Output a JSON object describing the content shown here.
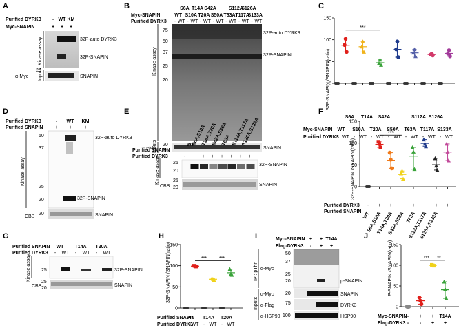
{
  "panels": {
    "A": {
      "label": "A",
      "rows": [
        {
          "label": "Purified DYRK3",
          "values": [
            "-",
            "WT",
            "KM"
          ]
        },
        {
          "label": "Myc-SNAPIN",
          "values": [
            "+",
            "+",
            "+"
          ]
        }
      ],
      "side_label_top": "Kinase assay",
      "side_label_bottom": "Inputs",
      "band_labels": [
        "32P-auto DYRK3",
        "32P-SNAPIN",
        "SNAPIN"
      ],
      "blot_label": "α-Myc",
      "mw": [
        "25"
      ]
    },
    "B": {
      "label": "B",
      "mutants_top": [
        "S6A",
        "T14A",
        "S42A",
        "S112A",
        "S126A"
      ],
      "mutants_bottom": [
        "WT",
        "S10A",
        "T20A",
        "S50A",
        "T63A",
        "T117A",
        "S133A"
      ],
      "row_labels": [
        "Myc-SNAPIN",
        "Purified DYRK3"
      ],
      "dyrk3_values": [
        "-",
        "WT",
        "-",
        "WT",
        "-",
        "WT",
        "-",
        "WT",
        "-",
        "WT",
        "-",
        "WT",
        "-",
        "WT"
      ],
      "side_label_top": "Kinase assay",
      "side_label_bottom": "Inputs",
      "band_labels": [
        "32P-auto DYRK3",
        "32P-SNAPIN",
        "SNAPIN"
      ],
      "blot_label": "α-Myc",
      "mw_top": [
        "75",
        "50",
        "37",
        "25",
        "20"
      ],
      "mw_bottom": [
        "20",
        "15"
      ]
    },
    "C": {
      "label": "C",
      "chart_data": {
        "type": "scatter",
        "ylabel": "32P-SNAPIN /SNAPIN(ratio)",
        "ylim": [
          0,
          150
        ],
        "yticks": [
          0,
          50,
          100,
          150
        ],
        "groups": [
          "WT",
          "S6A S10A",
          "T14A T20A",
          "S42A S50A",
          "T63A",
          "S112A T117A",
          "S126A S133A"
        ],
        "points_wt": [
          [
            88,
            102,
            72
          ],
          [
            84,
            96,
            72
          ],
          [
            46,
            54,
            42
          ],
          [
            78,
            96,
            60
          ],
          [
            70,
            78,
            62
          ],
          [
            66,
            68,
            64
          ],
          [
            68,
            76,
            62
          ]
        ],
        "colors": [
          "#e0201b",
          "#f0b21a",
          "#3aa33a",
          "#1f3b8c",
          "#5560a8",
          "#d23a6a",
          "#a23a9a"
        ],
        "significance": [
          "***"
        ],
        "xlabels_top": [
          "S6A",
          "T14A",
          "S42A",
          "S112A",
          "S126A"
        ],
        "xlabels_bottom": [
          "WT",
          "S10A",
          "T20A",
          "S50A",
          "T63A",
          "T117A",
          "S133A"
        ],
        "row_labels": [
          "Myc-SNAPIN",
          "Purified DYRK3"
        ],
        "dyrk3_values": [
          "-",
          "WT",
          "-",
          "WT",
          "-",
          "WT",
          "-",
          "WT",
          "-",
          "WT",
          "-",
          "WT",
          "-",
          "WT"
        ]
      }
    },
    "D": {
      "label": "D",
      "rows": [
        {
          "label": "Purified DYRK3",
          "values": [
            "-",
            "WT",
            "KM"
          ]
        },
        {
          "label": "Purified SNAPIN",
          "values": [
            "+",
            "+",
            "+"
          ]
        }
      ],
      "side_label": "Kinase assay",
      "bottom_label": "CBB",
      "band_labels": [
        "32P-auto DYRK3",
        "32P-SNAPIN",
        "SNAPIN"
      ],
      "mw": [
        "50",
        "37",
        "25",
        "20",
        "20"
      ]
    },
    "E": {
      "label": "E",
      "lane_labels": [
        "WT",
        "S6A,S10A",
        "T14A,T20A",
        "S42A,S50A",
        "T63A",
        "S112A,T117A",
        "S126A,S133A"
      ],
      "row_labels": [
        "Purified SNAPIN",
        "Purified DYRK3"
      ],
      "dyrk3_values": [
        "-",
        "+",
        "+",
        "+",
        "+",
        "+",
        "+",
        "+"
      ],
      "side_label": "Kinase assay",
      "bottom_label": "CBB",
      "band_labels": [
        "32P-SNAPIN",
        "SNAPIN"
      ],
      "mw_top": [
        "25",
        "20"
      ],
      "mw_bottom": [
        "25",
        "20"
      ]
    },
    "F": {
      "label": "F",
      "chart_data": {
        "type": "scatter",
        "ylabel": "32P-SNAPIN /SNAPIN(ratio)",
        "ylim": [
          0,
          150
        ],
        "yticks": [
          0,
          50,
          100,
          150
        ],
        "groups": [
          "WT",
          "S6A,S10A",
          "T14A,T20A",
          "S42A,S50A",
          "T63A",
          "S112A,T117A",
          "S126A,S133A"
        ],
        "points": [
          [
            103,
            98,
            90
          ],
          [
            78,
            62,
            42
          ],
          [
            30,
            36,
            18
          ],
          [
            90,
            80,
            40
          ],
          [
            108,
            98,
            92
          ],
          [
            65,
            48,
            38
          ],
          [
            98,
            80,
            60
          ]
        ],
        "colors": [
          "#e0201b",
          "#f07a1a",
          "#f0d21a",
          "#3aa33a",
          "#1f3b8c",
          "#222222",
          "#c24a9a"
        ],
        "significance": [
          "***"
        ],
        "row_labels": [
          "Purified DYRK3",
          "Purified SNAPIN"
        ],
        "dyrk3_values": [
          "-",
          "+",
          "+",
          "+",
          "+",
          "+",
          "+",
          "+"
        ],
        "xlabels": [
          "WT",
          "S6A,S10A",
          "T14A,T20A",
          "S42A,S50A",
          "T63A",
          "S112A,T117A",
          "S126A,S133A"
        ]
      }
    },
    "G": {
      "label": "G",
      "lane_labels": [
        "WT",
        "T14A",
        "T20A"
      ],
      "row_labels": [
        "Purified SNAPIN",
        "Purified DYRK3"
      ],
      "dyrk3_values": [
        "-",
        "WT",
        "-",
        "WT",
        "-",
        "WT"
      ],
      "side_label": "Kinase assay",
      "bottom_label": "CBB",
      "band_labels": [
        "32P-SNAPIN",
        "SNAPIN"
      ],
      "mw_top": [
        "25"
      ],
      "mw_bottom": [
        "25",
        "20"
      ]
    },
    "H": {
      "label": "H",
      "chart_data": {
        "type": "scatter",
        "ylabel": "32P-SNAPIN /SNAPIN(ratio)",
        "ylim": [
          0,
          150
        ],
        "yticks": [
          0,
          50,
          100,
          150
        ],
        "groups": [
          "WT",
          "T14A",
          "T20A"
        ],
        "points_wt": [
          [
            100,
            99,
            98
          ],
          [
            70,
            68,
            66
          ],
          [
            92,
            80,
            78
          ]
        ],
        "colors": [
          "#e0201b",
          "#f0d21a",
          "#3aa33a"
        ],
        "significance": [
          "***",
          "***"
        ],
        "row_labels": [
          "Purified SNAPIN",
          "Purified DYRK3"
        ],
        "xlabels": [
          "WT",
          "T14A",
          "T20A"
        ],
        "dyrk3_values": [
          "-",
          "WT",
          "-",
          "WT",
          "-",
          "WT"
        ]
      }
    },
    "I": {
      "label": "I",
      "rows": [
        {
          "label": "Myc-SNAPIN",
          "values": [
            "-",
            "+",
            "+",
            "T14A"
          ]
        },
        {
          "label": "Flag-DYRK3",
          "values": [
            "-",
            "-",
            "+",
            "+"
          ]
        }
      ],
      "ip_label": "IP : pThr",
      "inputs_label": "Inputs",
      "blot_labels": [
        "α-Myc",
        "α-Myc",
        "α-Flag",
        "α-HSP90"
      ],
      "band_labels": [
        "p-SNAPIN",
        "SNAPIN",
        "DYRK3",
        "HSP90"
      ],
      "mw": [
        "50",
        "37",
        "25",
        "20",
        "20",
        "75",
        "100"
      ]
    },
    "J": {
      "label": "J",
      "chart_data": {
        "type": "scatter",
        "ylabel": "P-SNAPIN /SNAPIN(ratio)",
        "ylim": [
          0,
          150
        ],
        "yticks": [
          0,
          50,
          100,
          150
        ],
        "groups": [
          "ctrl",
          "Myc-SNAPIN",
          "Myc-SNAPIN+Flag-DYRK3",
          "T14A+Flag-DYRK3"
        ],
        "points": [
          [
            0,
            0,
            0
          ],
          [
            22,
            14,
            6
          ],
          [
            101,
            100,
            99
          ],
          [
            60,
            42,
            20
          ]
        ],
        "colors": [
          "#888888",
          "#e0201b",
          "#f0d21a",
          "#3aa33a"
        ],
        "significance": [
          "***",
          "**"
        ],
        "rows": [
          {
            "label": "Myc-SNAPIN",
            "values": [
              "-",
              "+",
              "+",
              "T14A"
            ]
          },
          {
            "label": "Flag-DYRK3",
            "values": [
              "-",
              "-",
              "+",
              "+"
            ]
          }
        ]
      }
    }
  }
}
